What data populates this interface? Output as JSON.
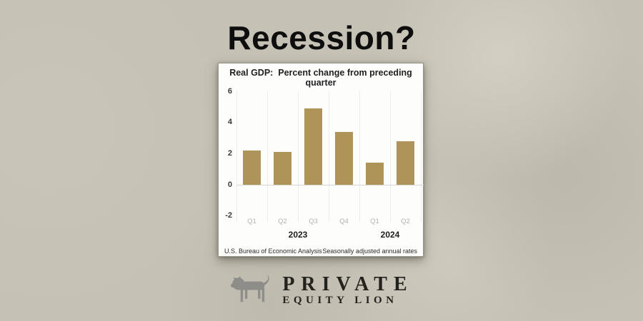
{
  "page": {
    "headline": "Recession?"
  },
  "colors": {
    "background": "#c5c1b5",
    "bar": "#af945a",
    "card_background": "#fdfdfc",
    "card_border": "#9b968c",
    "gridline": "#ececea",
    "zero_line": "#d9d7d2",
    "quarter_label": "#b4b1ab",
    "headline_text": "#0e0e0e",
    "logo_text": "#24221e",
    "lion_gray": "#8e8d89"
  },
  "chart_card": {
    "title": "Real GDP:  Percent change from preceding quarter",
    "source_left": "U.S. Bureau of Economic Analysis",
    "source_right": "Seasonally adjusted annual rates"
  },
  "chart_data": {
    "type": "bar",
    "title": "Real GDP: Percent change from preceding quarter",
    "categories": [
      "Q1",
      "Q2",
      "Q3",
      "Q4",
      "Q1",
      "Q2"
    ],
    "values": [
      2.2,
      2.1,
      4.9,
      3.4,
      1.4,
      2.8
    ],
    "group_labels": [
      {
        "label": "2023",
        "span": [
          0,
          3
        ]
      },
      {
        "label": "2024",
        "span": [
          4,
          5
        ]
      }
    ],
    "yticks": [
      6,
      4,
      2,
      0,
      -2
    ],
    "ylim": [
      -2,
      6
    ],
    "xlabel": "",
    "ylabel": "",
    "bar_color": "#af945a",
    "grid": "vertical-light",
    "legend": "none",
    "footnote_left": "U.S. Bureau of Economic Analysis",
    "footnote_right": "Seasonally adjusted annual rates"
  },
  "logo": {
    "icon": "lion-icon",
    "line1": "PRIVATE",
    "line2": "EQUITY LION"
  }
}
